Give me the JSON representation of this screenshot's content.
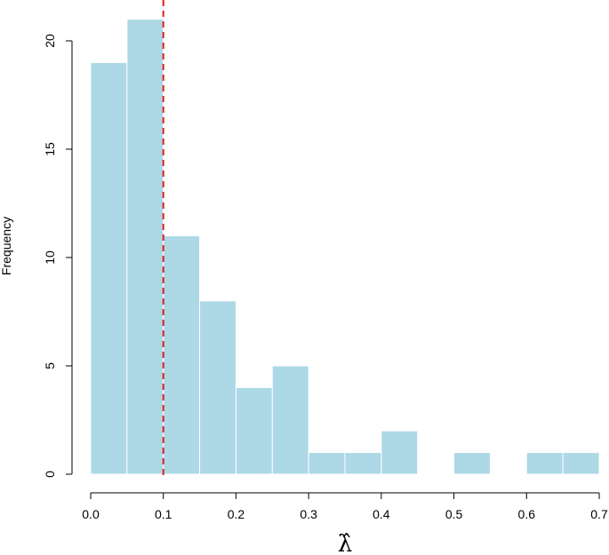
{
  "chart_data": {
    "type": "bar",
    "subtype": "histogram",
    "title": "",
    "xlabel": "λ̂",
    "ylabel": "Frequency",
    "bin_edges": [
      0.0,
      0.05,
      0.1,
      0.15,
      0.2,
      0.25,
      0.3,
      0.35,
      0.4,
      0.45,
      0.5,
      0.55,
      0.6,
      0.65,
      0.7
    ],
    "values": [
      19,
      21,
      11,
      8,
      4,
      5,
      1,
      1,
      2,
      0,
      1,
      0,
      1,
      1
    ],
    "xlim": [
      0.0,
      0.7
    ],
    "ylim": [
      0,
      21
    ],
    "xticks": [
      0.0,
      0.1,
      0.2,
      0.3,
      0.4,
      0.5,
      0.6,
      0.7
    ],
    "xtick_labels": [
      "0.0",
      "0.1",
      "0.2",
      "0.3",
      "0.4",
      "0.5",
      "0.6",
      "0.7"
    ],
    "yticks": [
      0,
      5,
      10,
      15,
      20
    ],
    "ytick_labels": [
      "0",
      "5",
      "10",
      "15",
      "20"
    ],
    "reference_line": {
      "x": 0.1,
      "style": "dashed",
      "color": "#e02020"
    },
    "bar_color": "#add8e6",
    "bar_edge_color": "#ffffff",
    "grid": false,
    "legend": "none"
  }
}
